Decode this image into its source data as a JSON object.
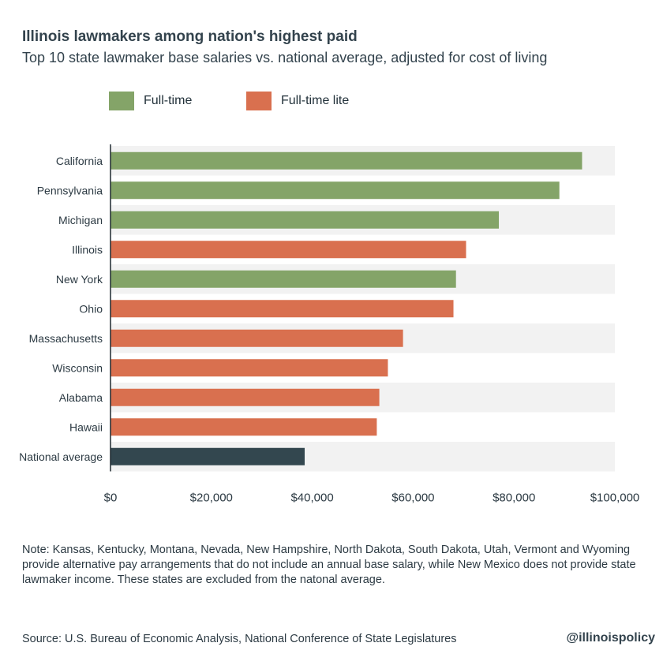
{
  "header": {
    "title": "Illinois lawmakers among nation's highest paid",
    "subtitle": "Top 10 state lawmaker base salaries vs. national average, adjusted for cost of living"
  },
  "legend": [
    {
      "label": "Full-time",
      "color": "#84a468"
    },
    {
      "label": "Full-time lite",
      "color": "#d9704f"
    }
  ],
  "chart_data": {
    "type": "bar",
    "orientation": "horizontal",
    "categories": [
      "California",
      "Pennsylvania",
      "Michigan",
      "Illinois",
      "New York",
      "Ohio",
      "Massachusetts",
      "Wisconsin",
      "Alabama",
      "Hawaii",
      "National average"
    ],
    "values": [
      93500,
      89000,
      77000,
      70500,
      68500,
      68000,
      58000,
      55000,
      53300,
      52800,
      38500
    ],
    "groups": [
      "Full-time",
      "Full-time",
      "Full-time",
      "Full-time lite",
      "Full-time",
      "Full-time lite",
      "Full-time lite",
      "Full-time lite",
      "Full-time lite",
      "Full-time lite",
      "National average"
    ],
    "colors": {
      "Full-time": "#84a468",
      "Full-time lite": "#d9704f",
      "National average": "#33474f"
    },
    "xlim": [
      0,
      100000
    ],
    "xticks": [
      "$0",
      "$20,000",
      "$40,000",
      "$60,000",
      "$80,000",
      "$100,000"
    ],
    "xtick_values": [
      0,
      20000,
      40000,
      60000,
      80000,
      100000
    ],
    "row_stripe_color": "#f2f2f2",
    "grid": false,
    "legend_position": "top-left"
  },
  "note": "Note: Kansas, Kentucky, Montana, Nevada, New Hampshire, North Dakota, South Dakota, Utah, Vermont and Wyoming provide alternative pay arrangements that do not include an annual base salary, while New Mexico does not provide state lawmaker income. These states are excluded from the natonal average.",
  "source": "Source: U.S. Bureau of Economic Analysis, National Conference of State Legislatures",
  "handle": "@illinoispolicy"
}
